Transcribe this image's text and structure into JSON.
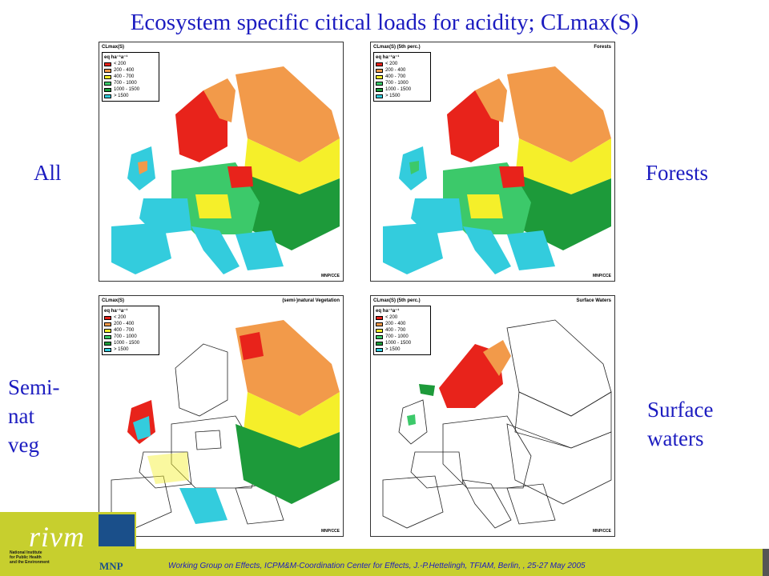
{
  "title": "Ecosystem specific citical loads for acidity; CLmax(S)",
  "labels": {
    "all": "All",
    "forests": "Forests",
    "semi_line1": "Semi-",
    "semi_line2": "nat",
    "semi_line3": "veg",
    "surface_line1": "Surface",
    "surface_line2": "waters"
  },
  "legend": {
    "unit": "eq ha⁻¹a⁻¹",
    "classes": [
      {
        "label": "< 200",
        "color": "#e8231b"
      },
      {
        "label": "200 - 400",
        "color": "#f29a4a"
      },
      {
        "label": "400 - 700",
        "color": "#f5ef2a"
      },
      {
        "label": "700 - 1000",
        "color": "#3cc96a"
      },
      {
        "label": "1000 - 1500",
        "color": "#1d9a3a"
      },
      {
        "label": "> 1500",
        "color": "#33ccdd"
      }
    ]
  },
  "maps": [
    {
      "head_left": "CLmax(S)",
      "head_right": "",
      "credit": "MNP/CCE"
    },
    {
      "head_left": "CLmax(S) (5th perc.)",
      "head_right": "Forests",
      "credit": "MNP/CCE"
    },
    {
      "head_left": "CLmax(S)",
      "head_right": "(semi-)natural Vegetation",
      "credit": "MNP/CCE"
    },
    {
      "head_left": "CLmax(S) (5th perc.)",
      "head_right": "Surface Waters",
      "credit": "MNP/CCE"
    }
  ],
  "logo": {
    "rivm": "rivm",
    "institute_line1": "National Institute",
    "institute_line2": "for Public Health",
    "institute_line3": "and the Environment",
    "mnp": "MNP"
  },
  "footer": "Working Group on Effects, ICPM&M-Coordination Center for Effects, J.-P.Hettelingh, TFIAM, Berlin, , 25-27 May  2005"
}
